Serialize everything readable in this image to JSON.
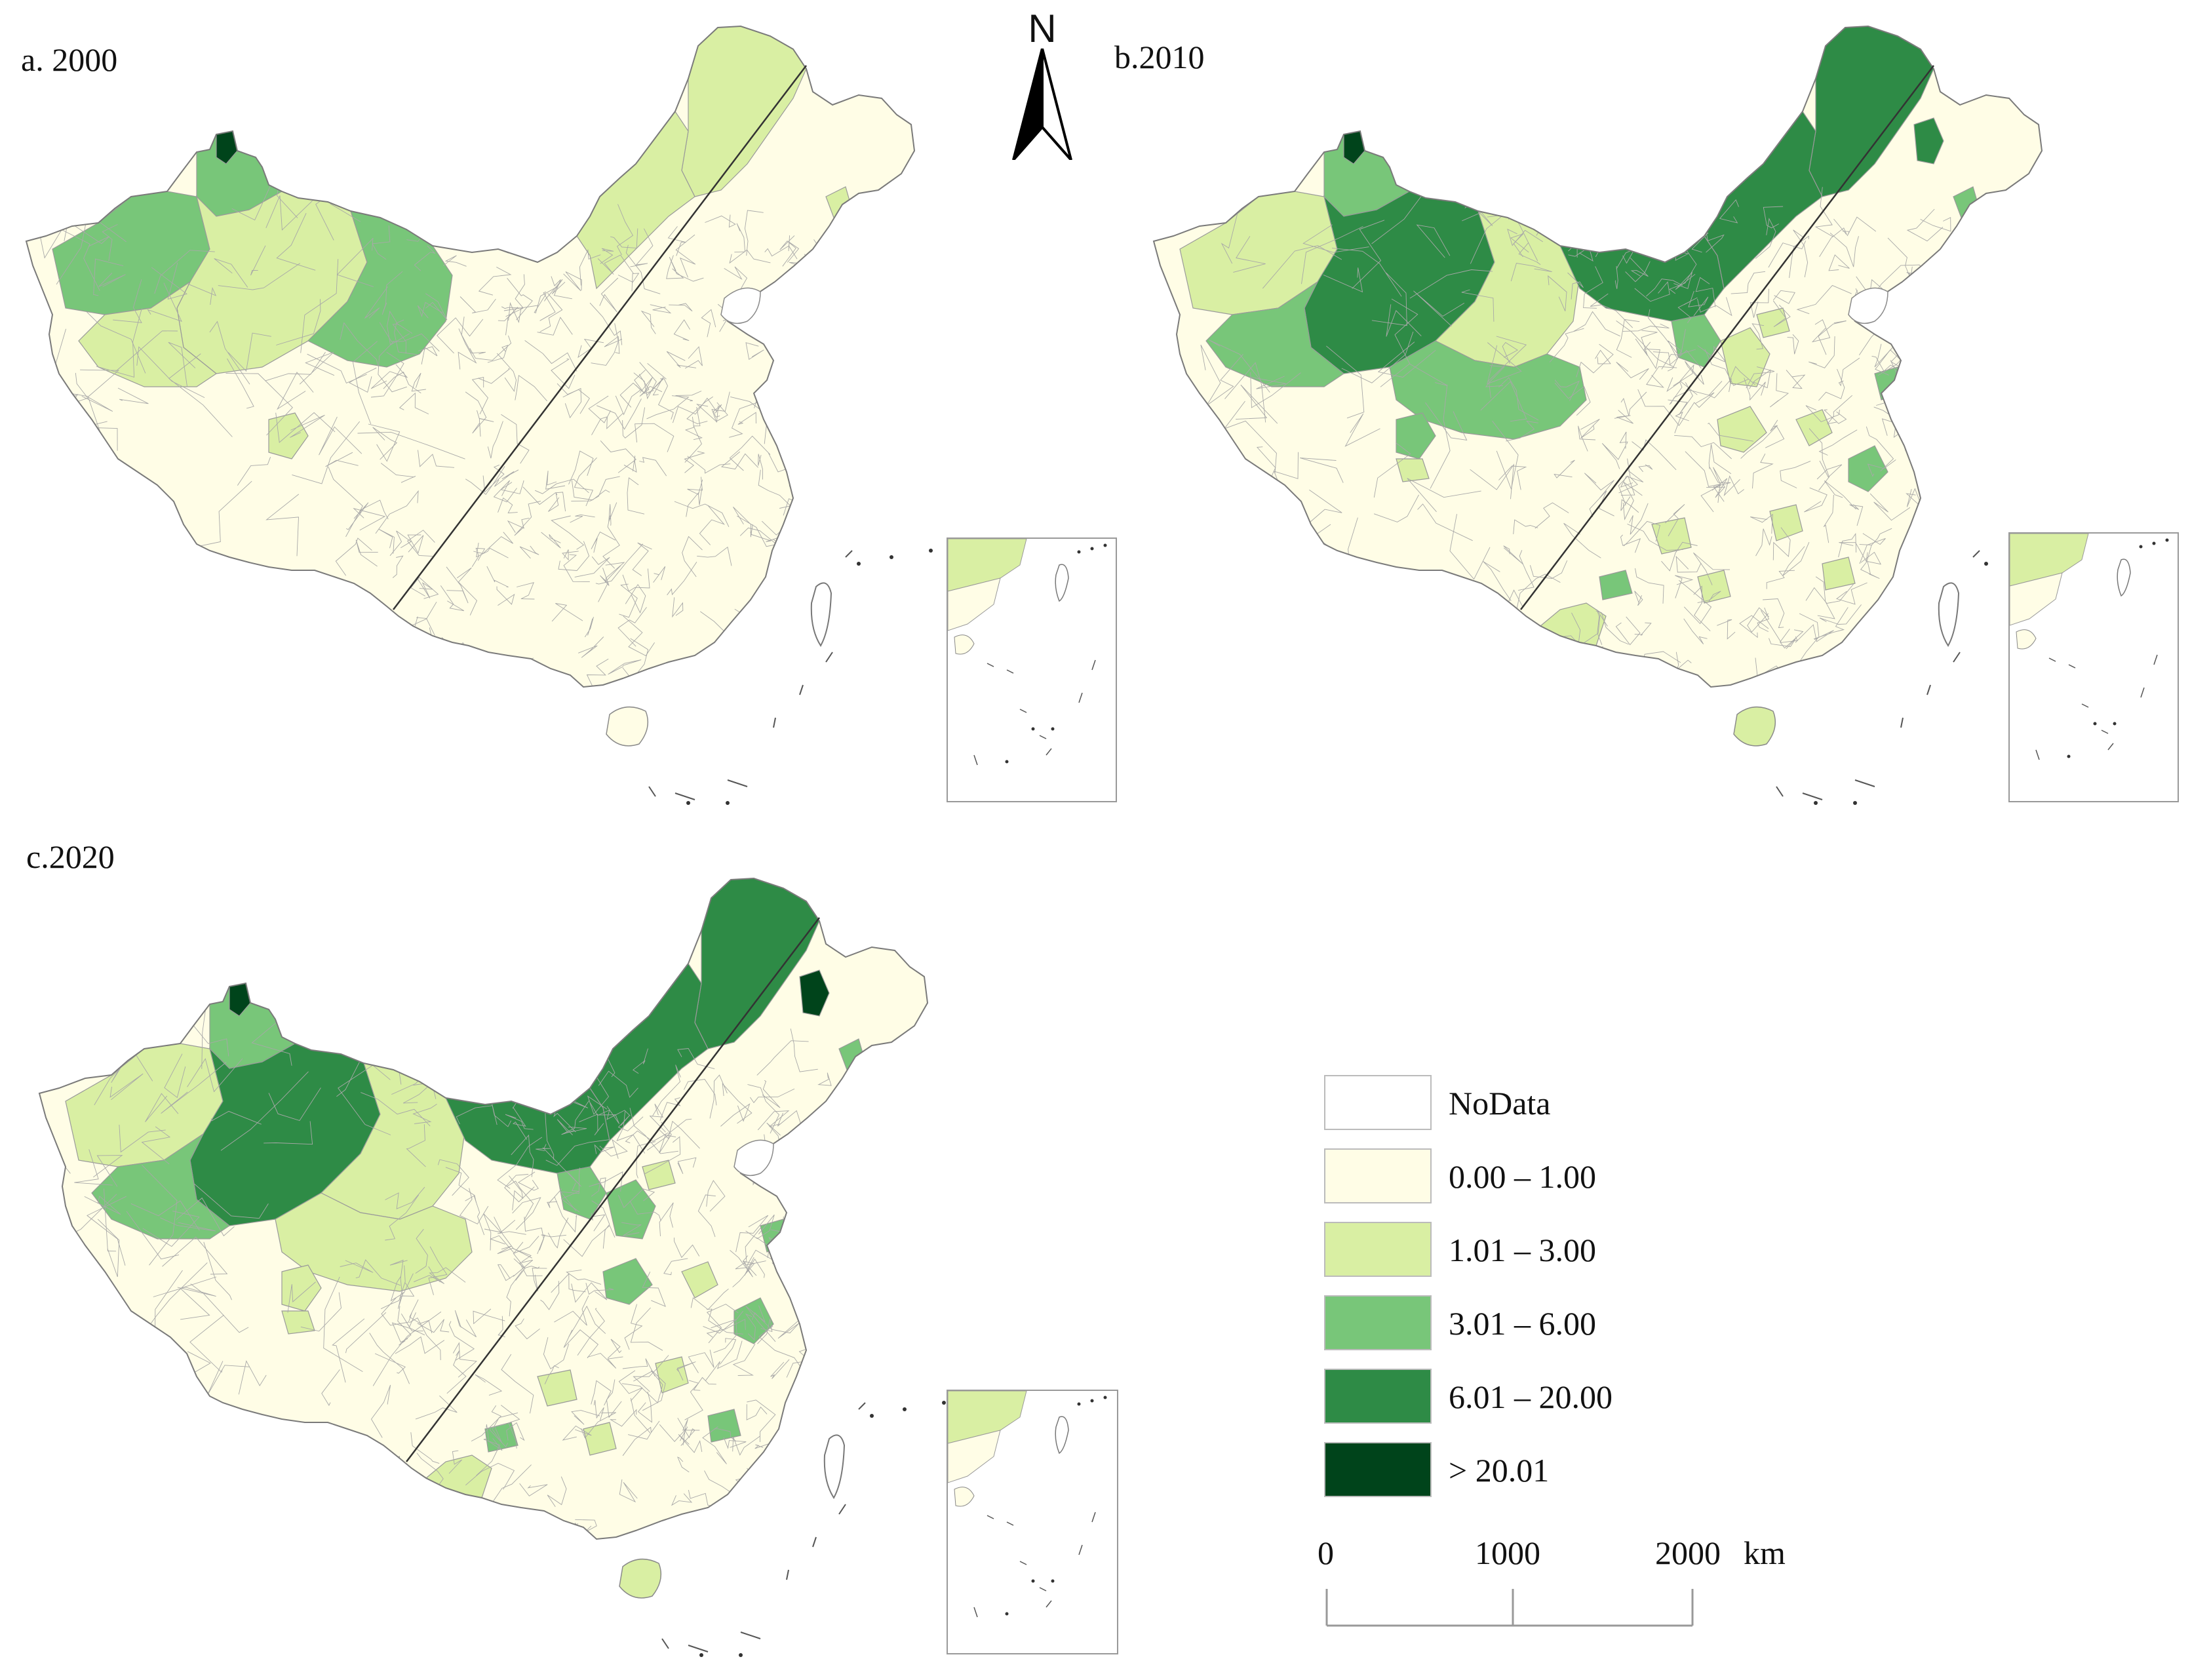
{
  "panels": [
    {
      "id": "a",
      "label": "a. 2000"
    },
    {
      "id": "b",
      "label": "b.2010"
    },
    {
      "id": "c",
      "label": "c.2020"
    }
  ],
  "north_arrow": {
    "letter": "N"
  },
  "legend": {
    "classes": [
      {
        "label": "NoData",
        "color": "#ffffff"
      },
      {
        "label": "0.00 – 1.00",
        "color": "#fffde6"
      },
      {
        "label": "1.01 – 3.00",
        "color": "#d9efa3"
      },
      {
        "label": "3.01 – 6.00",
        "color": "#78c679"
      },
      {
        "label": "6.01 – 20.00",
        "color": "#2e8b46"
      },
      {
        "label": "> 20.01",
        "color": "#00441b"
      }
    ]
  },
  "scale_bar": {
    "ticks": [
      "0",
      "1000",
      "2000"
    ],
    "unit": "km"
  }
}
